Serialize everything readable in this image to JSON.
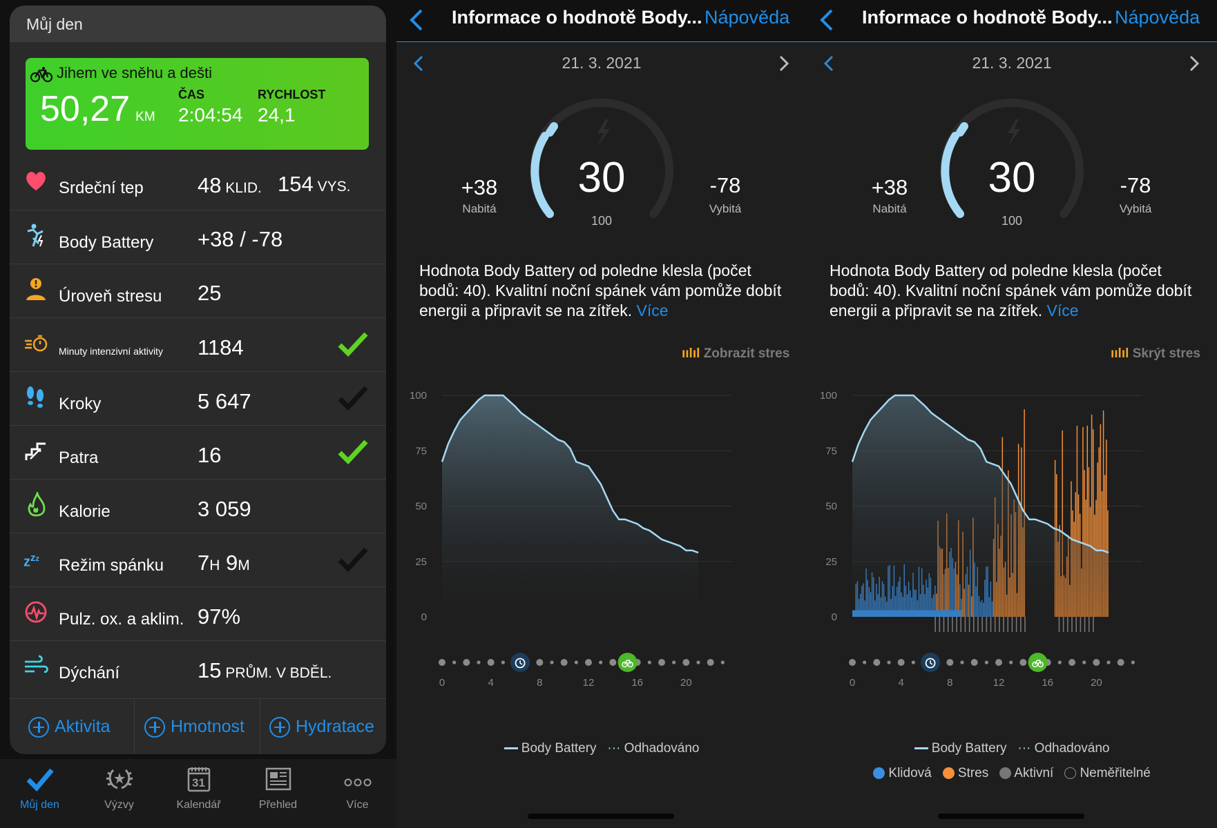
{
  "left": {
    "header_title": "Můj den",
    "activity": {
      "name": "Jihem ve sněhu a dešti",
      "distance": "50,27",
      "distance_unit": "KM",
      "time_label": "ČAS",
      "time_value": "2:04:54",
      "speed_label": "RYCHLOST",
      "speed_value": "24,1"
    },
    "rows": [
      {
        "label": "Srdeční tep",
        "value": "48",
        "unit": " KLID.",
        "value2": "154",
        "unit2": " VYS.",
        "icon": "heart-icon",
        "check": "none"
      },
      {
        "label": "Body Battery",
        "value": "+38 / -78",
        "icon": "body-battery-icon",
        "check": "none"
      },
      {
        "label": "Úroveň stresu",
        "value": "25",
        "icon": "stress-icon",
        "check": "none"
      },
      {
        "label": "Minuty intenzivní aktivity",
        "value": "1184",
        "icon": "intensity-minutes-icon",
        "check": "green"
      },
      {
        "label": "Kroky",
        "value": "5 647",
        "icon": "steps-icon",
        "check": "dark"
      },
      {
        "label": "Patra",
        "value": "16",
        "icon": "floors-icon",
        "check": "green"
      },
      {
        "label": "Kalorie",
        "value": "3 059",
        "icon": "calories-icon",
        "check": "none"
      },
      {
        "label": "Režim spánku",
        "value_h": "7",
        "unit_h": "H",
        "value_m": "9",
        "unit_m": "M",
        "icon": "sleep-icon",
        "check": "dark"
      },
      {
        "label": "Pulz. ox. a aklim.",
        "value": "97%",
        "icon": "pulse-ox-icon",
        "check": "none"
      },
      {
        "label": "Dýchání",
        "value": "15",
        "unit": " PRŮM. V BDĚL.",
        "icon": "respiration-icon",
        "check": "none"
      }
    ],
    "actions": [
      "Aktivita",
      "Hmotnost",
      "Hydratace"
    ],
    "tabs": [
      "Můj den",
      "Výzvy",
      "Kalendář",
      "Přehled",
      "Více"
    ],
    "calendar_day": "31",
    "accent": "#1f8fea",
    "activity_green": "#4ccb24"
  },
  "panels": [
    {
      "nav_title": "Informace o hodnotě Body...",
      "nav_help": "Nápověda",
      "date": "21. 3. 2021",
      "gauge_value": "30",
      "gauge_max": "100",
      "charged_value": "+38",
      "charged_label": "Nabitá",
      "drained_value": "-78",
      "drained_label": "Vybitá",
      "description": "Hodnota Body Battery od poledne klesla (počet bodů: 40). Kvalitní noční spánek vám pomůže dobít energii a připravit se na zítřek. ",
      "more": "Více",
      "stress_toggle": "Zobrazit stres",
      "legend": [
        "Body Battery",
        "Odhadováno"
      ]
    },
    {
      "nav_title": "Informace o hodnotě Body...",
      "nav_help": "Nápověda",
      "date": "21. 3. 2021",
      "gauge_value": "30",
      "gauge_max": "100",
      "charged_value": "+38",
      "charged_label": "Nabitá",
      "drained_value": "-78",
      "drained_label": "Vybitá",
      "description": "Hodnota Body Battery od poledne klesla (počet bodů: 40). Kvalitní noční spánek vám pomůže dobít energii a připravit se na zítřek. ",
      "more": "Více",
      "stress_toggle": "Skrýt stres",
      "legend": [
        "Body Battery",
        "Odhadováno"
      ],
      "legend2": [
        "Klidová",
        "Stres",
        "Aktivní",
        "Neměřitelné"
      ]
    }
  ],
  "chart_data": {
    "type": "area",
    "y_ticks": [
      "100",
      "75",
      "50",
      "25",
      "0"
    ],
    "x_ticks": [
      "0",
      "4",
      "8",
      "12",
      "16",
      "20"
    ],
    "ylim": [
      0,
      100
    ],
    "xlim": [
      0,
      24
    ],
    "series": [
      {
        "name": "Body Battery",
        "x": [
          0,
          0.5,
          1,
          1.5,
          2,
          2.5,
          3,
          3.5,
          4,
          5,
          6,
          6.5,
          7,
          7.5,
          8,
          8.5,
          9,
          9.5,
          10,
          10.5,
          11,
          12,
          13,
          13.5,
          14,
          14.5,
          15,
          15.5,
          16,
          16.5,
          17,
          17.5,
          18,
          18.5,
          19,
          19.5,
          20,
          20.5,
          21
        ],
        "values": [
          70,
          78,
          84,
          89,
          92,
          95,
          98,
          100,
          100,
          100,
          95,
          92,
          90,
          88,
          86,
          84,
          82,
          80,
          79,
          76,
          70,
          68,
          60,
          54,
          48,
          44,
          44,
          43,
          42,
          40,
          39,
          37,
          35,
          34,
          33,
          32,
          30,
          30,
          29
        ]
      }
    ],
    "colors": {
      "body_battery": "#a5d8f3",
      "rest": "#3b8fe0",
      "stress": "#f5903a",
      "active": "#777777"
    }
  }
}
